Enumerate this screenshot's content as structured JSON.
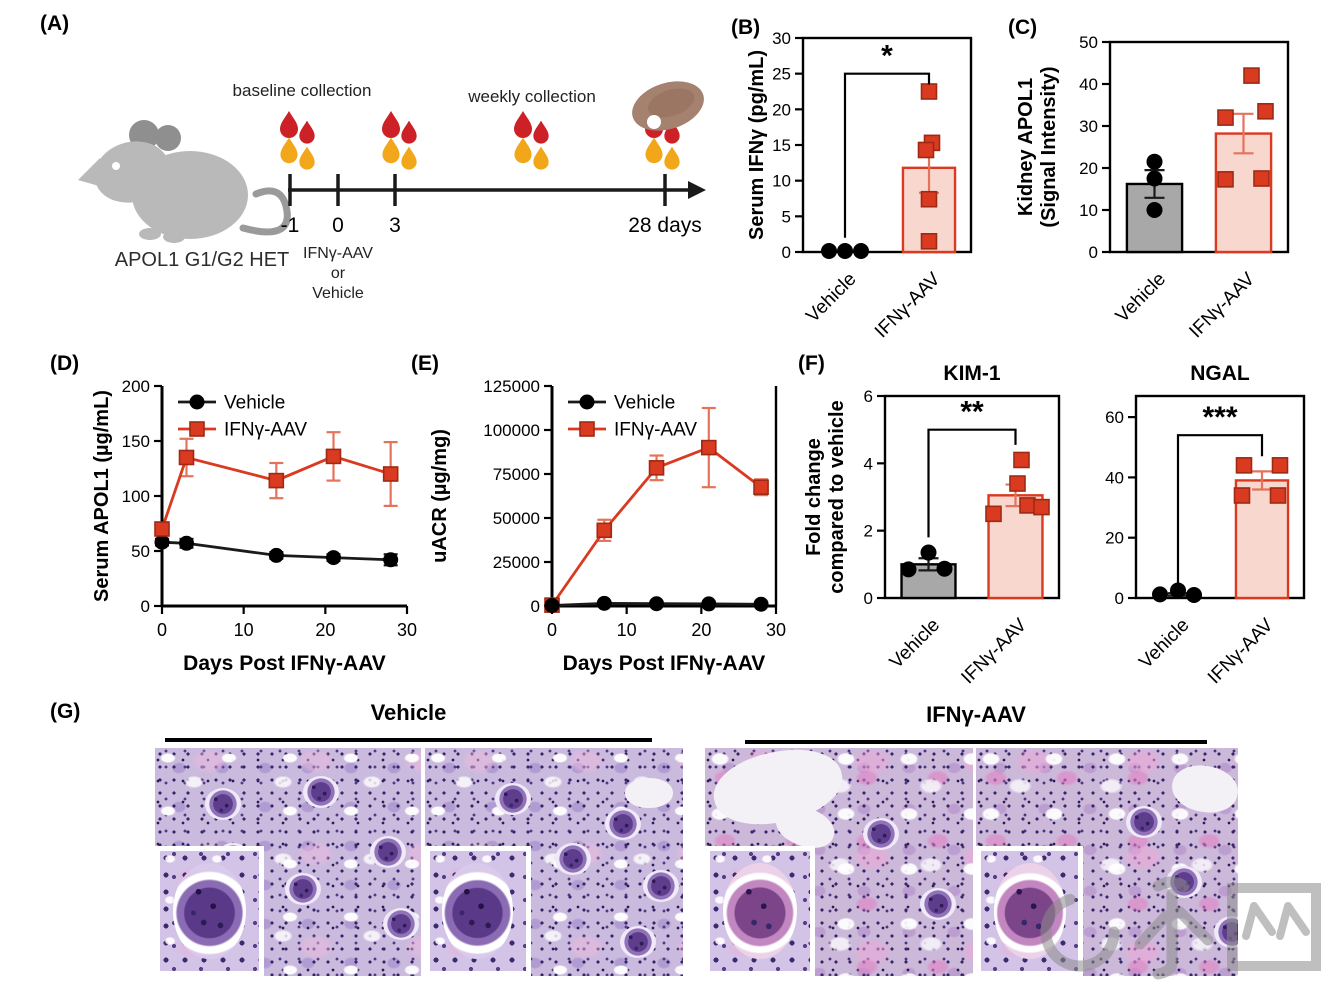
{
  "panel_labels": {
    "A": "(A)",
    "B": "(B)",
    "C": "(C)",
    "D": "(D)",
    "E": "(E)",
    "F": "(F)",
    "G": "(G)"
  },
  "panel_a": {
    "mouse_caption": "APOL1 G1/G2 HET",
    "baseline_label": "baseline collection",
    "weekly_label": "weekly collection",
    "timeline_ticks": [
      "-1",
      "0",
      "3"
    ],
    "end_label": "28 days",
    "injection_lines": [
      "IFNγ-AAV",
      "or",
      "Vehicle"
    ]
  },
  "panel_f_ylabel_lines": [
    "Fold change",
    "compared to vehicle"
  ],
  "chart_data": [
    {
      "id": "B",
      "type": "bar",
      "ylabel_lines": [
        "Serum IFNγ (pg/mL)"
      ],
      "ylim": [
        0,
        30
      ],
      "yticks": [
        0,
        5,
        10,
        15,
        20,
        25,
        30
      ],
      "categories": [
        "Vehicle",
        "IFNγ-AAV"
      ],
      "groups": [
        {
          "name": "Vehicle",
          "color": "black",
          "marker": "circle",
          "bar": false,
          "mean": 0,
          "sem": null,
          "points": [
            0,
            0,
            0
          ],
          "dx": [
            -16,
            0,
            16
          ]
        },
        {
          "name": "IFNγ-AAV",
          "color": "red",
          "marker": "square",
          "bar": true,
          "mean": 11.8,
          "sem": 3.5,
          "points": [
            22.5,
            15.3,
            14.3,
            7.4,
            1.5
          ],
          "dx": [
            0,
            3,
            -3,
            0,
            0
          ]
        }
      ],
      "sig": {
        "label": "*",
        "from": 2,
        "top": 25,
        "to": 23.5
      }
    },
    {
      "id": "C",
      "type": "bar",
      "ylabel_lines": [
        "Kidney APOL1",
        "(Signal Intensity)"
      ],
      "ylim": [
        0,
        50
      ],
      "yticks": [
        0,
        10,
        20,
        30,
        40,
        50
      ],
      "categories": [
        "Vehicle",
        "IFNγ-AAV"
      ],
      "groups": [
        {
          "name": "Vehicle",
          "color": "gray",
          "marker": "circle",
          "bar": true,
          "mean": 16.2,
          "sem": 3.3,
          "points": [
            21.5,
            17.5,
            10
          ],
          "dx": [
            0,
            0,
            0
          ]
        },
        {
          "name": "IFNγ-AAV",
          "color": "red",
          "marker": "square",
          "bar": true,
          "mean": 28.2,
          "sem": 4.7,
          "points": [
            42,
            33.5,
            32,
            17.5,
            17.3
          ],
          "dx": [
            8,
            22,
            -18,
            18,
            -18
          ]
        }
      ],
      "sig": null
    },
    {
      "id": "K",
      "type": "bar",
      "title": "KIM-1",
      "ylabel_lines": [],
      "ylim": [
        0,
        6
      ],
      "yticks": [
        0,
        2,
        4,
        6
      ],
      "categories": [
        "Vehicle",
        "IFNγ-AAV"
      ],
      "groups": [
        {
          "name": "Vehicle",
          "color": "gray",
          "marker": "circle",
          "bar": true,
          "mean": 1.0,
          "sem": 0.18,
          "points": [
            1.35,
            0.85,
            0.87
          ],
          "dx": [
            0,
            -20,
            16
          ]
        },
        {
          "name": "IFNγ-AAV",
          "color": "red",
          "marker": "square",
          "bar": true,
          "mean": 3.05,
          "sem": 0.32,
          "points": [
            4.1,
            3.4,
            2.75,
            2.7,
            2.5
          ],
          "dx": [
            6,
            2,
            12,
            26,
            -22
          ]
        }
      ],
      "sig": {
        "label": "**",
        "from": 1.8,
        "top": 5.0,
        "to": 4.55
      }
    },
    {
      "id": "N",
      "type": "bar",
      "title": "NGAL",
      "ylabel_lines": [],
      "ylim": [
        0,
        67
      ],
      "yticks": [
        0,
        20,
        40,
        60
      ],
      "categories": [
        "Vehicle",
        "IFNγ-AAV"
      ],
      "groups": [
        {
          "name": "Vehicle",
          "color": "gray",
          "marker": "circle",
          "bar": false,
          "mean": 1.2,
          "sem": 0.4,
          "points": [
            2.5,
            1.2,
            1.0
          ],
          "dx": [
            0,
            -18,
            16
          ]
        },
        {
          "name": "IFNγ-AAV",
          "color": "red",
          "marker": "square",
          "bar": true,
          "mean": 39,
          "sem": 3,
          "points": [
            44,
            44,
            34,
            34
          ],
          "dx": [
            -18,
            18,
            -20,
            16
          ]
        }
      ],
      "sig": {
        "label": "***",
        "from": 5,
        "top": 54,
        "to": 47
      }
    },
    {
      "id": "D",
      "type": "line",
      "ylabel_lines": [
        "Serum APOL1 (µg/mL)"
      ],
      "xlabel": "Days Post IFNγ-AAV",
      "ylim": [
        0,
        200
      ],
      "yticks": [
        0,
        50,
        100,
        150,
        200
      ],
      "xlim": [
        0,
        30
      ],
      "xticks": [
        0,
        10,
        20,
        30
      ],
      "x": [
        0,
        3,
        14,
        21,
        28
      ],
      "series": [
        {
          "name": "Vehicle",
          "color": "black",
          "marker": "circle",
          "legend_row": 0,
          "values": [
            58,
            57,
            46,
            44,
            42
          ],
          "err": [
            3,
            4,
            3,
            3,
            5
          ]
        },
        {
          "name": "IFNγ-AAV",
          "color": "red",
          "marker": "square",
          "legend_row": 1,
          "values": [
            70,
            135,
            114,
            136,
            120
          ],
          "err": [
            4,
            17,
            16,
            22,
            29
          ]
        }
      ]
    },
    {
      "id": "E",
      "type": "line",
      "ylabel_lines": [
        "uACR (µg/mg)"
      ],
      "xlabel": "Days Post IFNγ-AAV",
      "ylim": [
        0,
        125000
      ],
      "yticks": [
        0,
        25000,
        50000,
        75000,
        100000,
        125000
      ],
      "xlim": [
        0,
        30
      ],
      "xticks": [
        0,
        10,
        20,
        30
      ],
      "x": [
        0,
        7,
        14,
        21,
        28
      ],
      "series": [
        {
          "name": "IFNγ-AAV",
          "color": "red",
          "marker": "square",
          "legend_row": 1,
          "values": [
            500,
            43000,
            78500,
            90000,
            67500
          ],
          "err": [
            500,
            6000,
            7000,
            22500,
            4500
          ]
        },
        {
          "name": "Vehicle",
          "color": "black",
          "marker": "circle",
          "legend_row": 0,
          "values": [
            300,
            1500,
            1300,
            1200,
            1000
          ],
          "err": [
            0,
            0,
            0,
            0,
            0
          ]
        }
      ]
    }
  ],
  "histology": {
    "groups": [
      {
        "label": "Vehicle"
      },
      {
        "label": "IFNγ-AAV"
      }
    ]
  },
  "watermark": {
    "text": "脉网",
    "color": "#8c8c8c"
  },
  "colors": {
    "red": "#d93a20",
    "red_dark": "#9e2a14",
    "red_fill": "#f8d7cf",
    "red_error": "#e4735c",
    "gray_fill": "#a8a8a8",
    "black": "#1a1a1a",
    "drop_red": "#cc2127",
    "drop_yellow": "#f2a71b",
    "kidney": "#a5826f",
    "mouse": "#b9b9b9"
  }
}
